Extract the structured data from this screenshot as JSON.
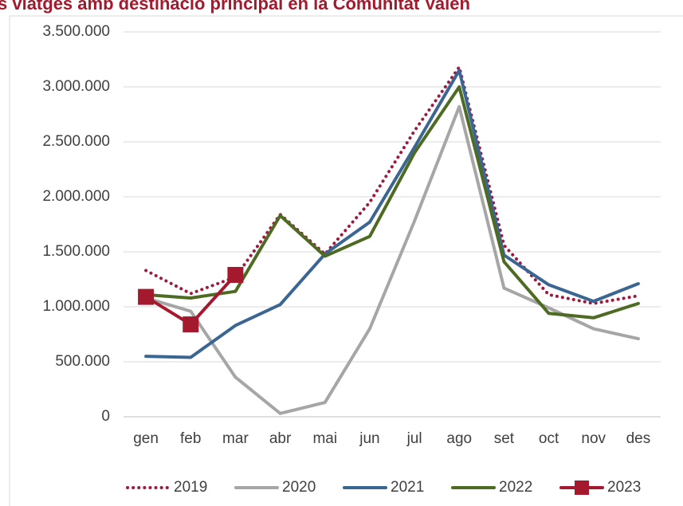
{
  "chart_data": {
    "type": "line",
    "title": "s viatges amb destinació principal en la Comunitat Valen",
    "categories": [
      "gen",
      "feb",
      "mar",
      "abr",
      "mai",
      "jun",
      "jul",
      "ago",
      "set",
      "oct",
      "nov",
      "des"
    ],
    "series": [
      {
        "name": "2019",
        "color": "#9b1b3f",
        "dash": "dotted",
        "values": [
          1330000,
          1120000,
          1270000,
          1840000,
          1480000,
          1950000,
          2600000,
          3180000,
          1560000,
          1110000,
          1030000,
          1100000
        ]
      },
      {
        "name": "2020",
        "color": "#a6a6a6",
        "values": [
          1080000,
          960000,
          360000,
          30000,
          130000,
          800000,
          1780000,
          2820000,
          1170000,
          990000,
          800000,
          710000
        ]
      },
      {
        "name": "2021",
        "color": "#3b6593",
        "values": [
          550000,
          540000,
          830000,
          1020000,
          1480000,
          1770000,
          2450000,
          3150000,
          1470000,
          1200000,
          1050000,
          1210000
        ]
      },
      {
        "name": "2022",
        "color": "#4e6b23",
        "values": [
          1110000,
          1080000,
          1140000,
          1830000,
          1460000,
          1640000,
          2400000,
          3000000,
          1410000,
          940000,
          900000,
          1030000
        ]
      },
      {
        "name": "2023",
        "color": "#a5192f",
        "marker": "square",
        "values": [
          1090000,
          840000,
          1290000,
          null,
          null,
          null,
          null,
          null,
          null,
          null,
          null,
          null
        ]
      }
    ],
    "ylim": [
      0,
      3500000
    ],
    "yticks": [
      0,
      {
        "value": 500000,
        "label": "500.000"
      },
      {
        "value": 1000000,
        "label": "1.000.000"
      },
      {
        "value": 1500000,
        "label": "1.500.000"
      },
      {
        "value": 2000000,
        "label": "2.000.000"
      },
      {
        "value": 2500000,
        "label": "2.500.000"
      },
      {
        "value": 3000000,
        "label": "3.000.000"
      },
      {
        "value": 3500000,
        "label": "3.500.000"
      }
    ],
    "grid": true,
    "legend": "bottom"
  }
}
